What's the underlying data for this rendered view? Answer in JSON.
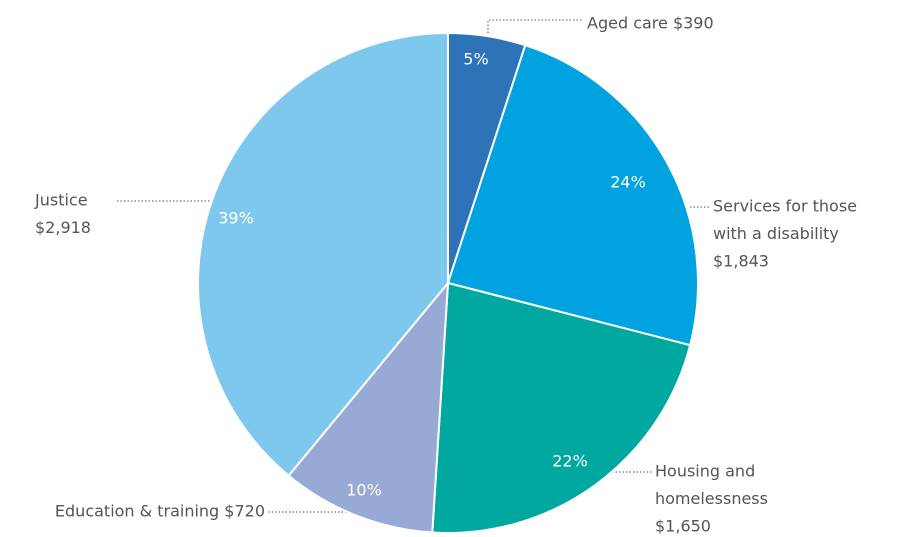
{
  "chart_data": {
    "type": "pie",
    "labels": [
      [
        "Aged care $390"
      ],
      [
        "Services for those",
        "with a disability",
        "$1,843"
      ],
      [
        "Housing and",
        "homelessness",
        "$1,650"
      ],
      [
        "Education & training $720"
      ],
      [
        "Justice",
        "$2,918"
      ]
    ],
    "values": [
      5,
      24,
      22,
      10,
      39
    ],
    "value_labels": [
      "5%",
      "24%",
      "22%",
      "10%",
      "39%"
    ],
    "colors": [
      "#2e73b8",
      "#00a3e0",
      "#00a8a0",
      "#97aad6",
      "#7ec8ee"
    ]
  }
}
